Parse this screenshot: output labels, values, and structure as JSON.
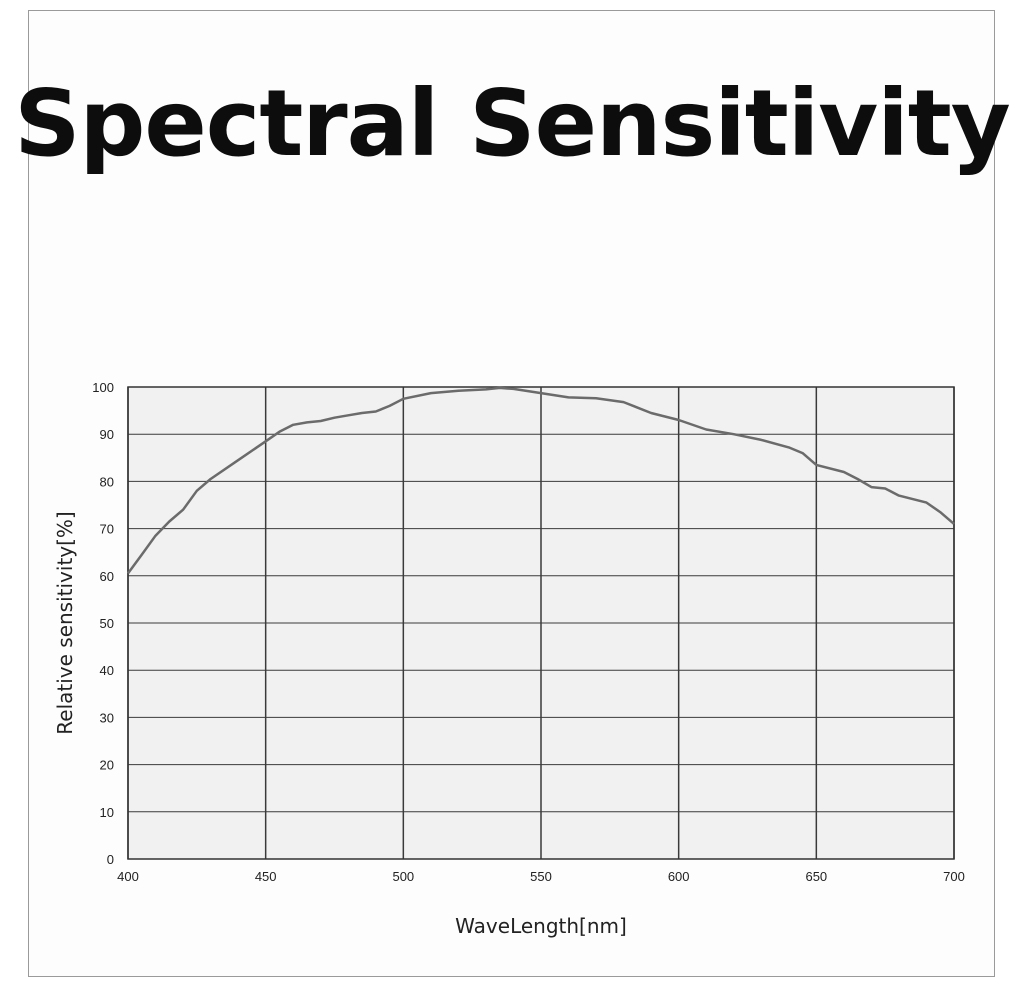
{
  "chart_data": {
    "type": "line",
    "title": "Spectral Sensitivity",
    "xlabel": "WaveLength[nm]",
    "ylabel": "Relative sensitivity[%]",
    "xlim": [
      400,
      700
    ],
    "ylim": [
      0,
      100
    ],
    "x_ticks": [
      "400",
      "450",
      "500",
      "550",
      "600",
      "650",
      "700"
    ],
    "y_ticks": [
      "0",
      "10",
      "20",
      "30",
      "40",
      "50",
      "60",
      "70",
      "80",
      "90",
      "100"
    ],
    "grid": true,
    "line_color": "#6b6b6b",
    "plot_background": "#f1f1f1",
    "series": [
      {
        "x": [
          400,
          405,
          410,
          415,
          420,
          425,
          430,
          440,
          450,
          455,
          460,
          465,
          470,
          475,
          480,
          485,
          490,
          495,
          500,
          510,
          520,
          530,
          535,
          540,
          550,
          560,
          570,
          580,
          590,
          600,
          610,
          620,
          630,
          640,
          645,
          650,
          660,
          665,
          670,
          675,
          680,
          690,
          695,
          700
        ],
        "y": [
          60.5,
          64.5,
          68.5,
          71.5,
          74,
          78,
          80.5,
          84.5,
          88.5,
          90.5,
          92,
          92.5,
          92.8,
          93.5,
          94,
          94.5,
          94.8,
          96,
          97.5,
          98.7,
          99.2,
          99.5,
          99.8,
          99.6,
          98.7,
          97.8,
          97.6,
          96.8,
          94.5,
          93,
          91,
          90,
          88.8,
          87.2,
          86,
          83.5,
          82,
          80.5,
          78.8,
          78.5,
          77,
          75.5,
          73.5,
          71
        ]
      }
    ]
  }
}
